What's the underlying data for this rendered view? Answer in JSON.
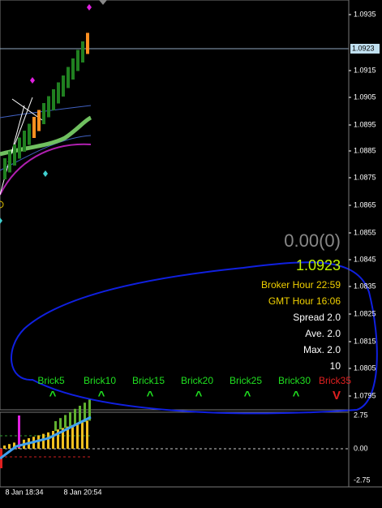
{
  "price_axis": {
    "labels": [
      "1.0935",
      "1.0915",
      "1.0905",
      "1.0895",
      "1.0885",
      "1.0875",
      "1.0865",
      "1.0855",
      "1.0845",
      "1.0835",
      "1.0825",
      "1.0815",
      "1.0805",
      "1.0795"
    ],
    "current": "1.0923"
  },
  "info_panel": {
    "profit": "0.00(0)",
    "price": "1.0923",
    "broker_hour": "Broker Hour  22:59",
    "gmt_hour": "GMT Hour  16:06",
    "spread": "Spread 2.0",
    "average": "Ave. 2.0",
    "max": "Max. 2.0",
    "count": "10"
  },
  "bricks": [
    {
      "label": "Brick5",
      "signal": "^"
    },
    {
      "label": "Brick10",
      "signal": "^"
    },
    {
      "label": "Brick15",
      "signal": "^"
    },
    {
      "label": "Brick20",
      "signal": "^"
    },
    {
      "label": "Brick25",
      "signal": "^"
    },
    {
      "label": "Brick30",
      "signal": "^"
    },
    {
      "label": "Brick35",
      "signal": "V"
    }
  ],
  "indicator_axis": {
    "labels": [
      "2.75",
      "0.00",
      "-2.75"
    ]
  },
  "time_axis": {
    "labels": [
      "8 Jan 18:34",
      "8 Jan 20:54"
    ]
  }
}
